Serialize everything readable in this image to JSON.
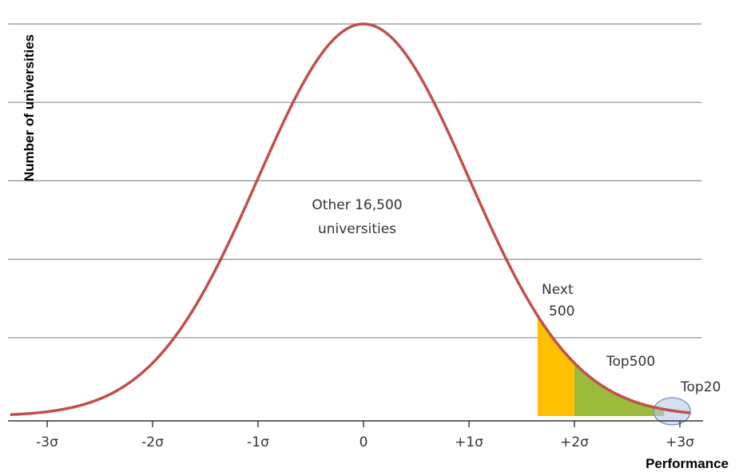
{
  "chart_data": {
    "type": "line",
    "title": "",
    "xlabel": "Performance",
    "ylabel": "Number of universities",
    "xlim": [
      -3.35,
      3.2
    ],
    "ylim": [
      0,
      1
    ],
    "x_ticks": [
      -3,
      -2,
      -1,
      0,
      1,
      2,
      3
    ],
    "x_tick_labels": [
      "-3σ",
      "-2σ",
      "-1σ",
      "0",
      "+1σ",
      "+2σ",
      "+3σ"
    ],
    "grid": "horizontal",
    "y_gridlines": [
      0.2,
      0.4,
      0.6,
      0.8,
      1.0
    ],
    "series": [
      {
        "function": "normal density, peak 1 at x = 0, sigma 1",
        "color": "#c0504d",
        "x_start": -3.35,
        "x_end": 3.1
      }
    ],
    "regions": [
      {
        "label": "Next 500",
        "x_from": 1.65,
        "x_to": 2.0,
        "color": "#ffc000"
      },
      {
        "label": "Top500",
        "x_from": 2.0,
        "x_to": 2.85,
        "color": "#9bbb3b"
      },
      {
        "label": "Top20",
        "x_from": 2.75,
        "x_to": 3.1,
        "color": "#b8cce4",
        "shape": "ellipse"
      }
    ],
    "annotations": [
      {
        "id": "other",
        "lines": [
          "Other 16,500",
          "universities"
        ]
      },
      {
        "id": "next",
        "lines": [
          "Next",
          "500"
        ]
      },
      {
        "id": "top500",
        "lines": [
          "Top500"
        ]
      },
      {
        "id": "top20",
        "lines": [
          "Top20"
        ]
      }
    ]
  }
}
